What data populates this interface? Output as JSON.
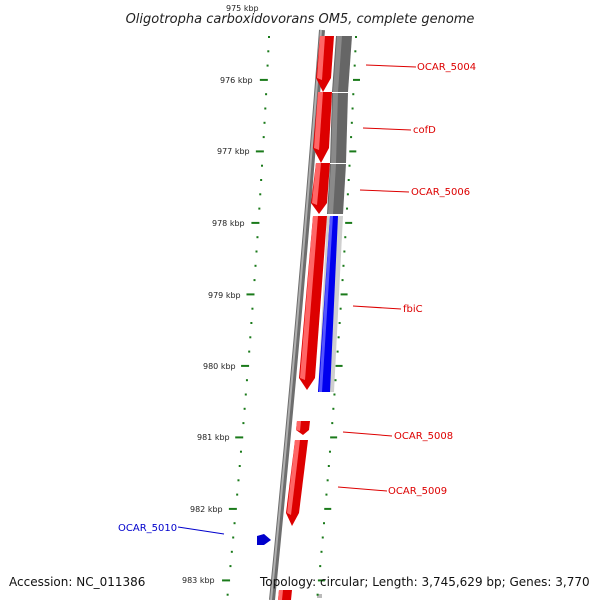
{
  "title": "Oligotropha carboxidovorans OM5, complete genome",
  "footer": {
    "accession": "Accession: NC_011386",
    "info": "Topology: circular; Length: 3,745,629 bp; Genes: 3,770"
  },
  "ruler": {
    "labels": [
      "975 kbp",
      "976 kbp",
      "977 kbp",
      "978 kbp",
      "979 kbp",
      "980 kbp",
      "981 kbp",
      "982 kbp",
      "983 kbp"
    ]
  },
  "genes": [
    {
      "name": "OCAR_5004",
      "color": "#dd0000",
      "strand": "reverse"
    },
    {
      "name": "cofD",
      "color": "#dd0000",
      "strand": "reverse"
    },
    {
      "name": "OCAR_5006",
      "color": "#dd0000",
      "strand": "reverse"
    },
    {
      "name": "fbiC",
      "color": "#dd0000",
      "strand": "reverse"
    },
    {
      "name": "OCAR_5008",
      "color": "#dd0000",
      "strand": "reverse"
    },
    {
      "name": "OCAR_5009",
      "color": "#dd0000",
      "strand": "reverse"
    },
    {
      "name": "OCAR_5010",
      "color": "#0000cc",
      "strand": "forward"
    }
  ],
  "colors": {
    "gene_reverse": "#dd0000",
    "gene_forward": "#0000cc",
    "cds_band": "#666666",
    "cds_band_light": "#c8c8c8",
    "cds_forward": "#0000ee",
    "backbone": "#8a8a8a",
    "ticks": "#1a7a1a"
  }
}
